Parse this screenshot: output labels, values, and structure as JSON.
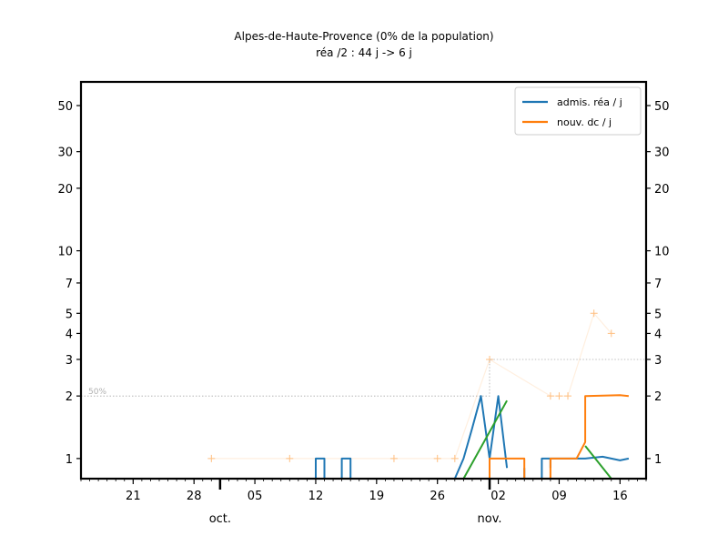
{
  "chart_data": {
    "type": "line",
    "title": "Alpes-de-Haute-Provence (0% de la population)",
    "subtitle": "réa /2 : 44 j -> 6 j",
    "xlabel": "",
    "ylabel": "",
    "yscale": "log",
    "ylim": [
      0.8,
      65
    ],
    "xlim": [
      "2020-09-15",
      "2020-11-19"
    ],
    "grid": false,
    "legend_position": "top-right",
    "y_ticks": [
      1,
      2,
      3,
      4,
      5,
      7,
      10,
      20,
      30,
      50
    ],
    "y_tick_labels": [
      "1",
      "2",
      "3",
      "4",
      "5",
      "7",
      "10",
      "20",
      "30",
      "50"
    ],
    "x_ticks": [
      "2020-09-21",
      "2020-09-28",
      "2020-10-05",
      "2020-10-12",
      "2020-10-19",
      "2020-10-26",
      "2020-11-02",
      "2020-11-09",
      "2020-11-16"
    ],
    "x_tick_labels": [
      "21",
      "28",
      "05",
      "12",
      "19",
      "26",
      "02",
      "09",
      "16"
    ],
    "month_labels": [
      {
        "date": "2020-10-01",
        "label": "oct."
      },
      {
        "date": "2020-11-01",
        "label": "nov."
      }
    ],
    "reference_label": "50%",
    "series": [
      {
        "name": "admis. réa / j",
        "color": "#1f77b4",
        "segments": [
          [
            [
              "2020-10-12",
              0.8
            ],
            [
              "2020-10-12",
              1.0
            ],
            [
              "2020-10-13",
              1.0
            ],
            [
              "2020-10-13",
              0.8
            ]
          ],
          [
            [
              "2020-10-15",
              0.8
            ],
            [
              "2020-10-15",
              1.0
            ],
            [
              "2020-10-16",
              1.0
            ],
            [
              "2020-10-16",
              0.8
            ]
          ],
          [
            [
              "2020-10-28",
              0.8
            ],
            [
              "2020-10-29",
              1.0
            ],
            [
              "2020-10-30",
              1.4
            ],
            [
              "2020-10-31",
              2.0
            ],
            [
              "2020-11-01",
              1.0
            ],
            [
              "2020-11-01",
              0.8
            ]
          ],
          [
            [
              "2020-11-01",
              1.0
            ],
            [
              "2020-11-02",
              2.0
            ],
            [
              "2020-11-03",
              0.9
            ]
          ],
          [
            [
              "2020-11-05",
              0.8
            ],
            [
              "2020-11-05",
              0.9
            ]
          ],
          [
            [
              "2020-11-07",
              0.8
            ],
            [
              "2020-11-07",
              1.0
            ],
            [
              "2020-11-08",
              1.0
            ],
            [
              "2020-11-08",
              0.9
            ]
          ],
          [
            [
              "2020-11-08",
              1.0
            ],
            [
              "2020-11-12",
              1.0
            ],
            [
              "2020-11-14",
              1.02
            ],
            [
              "2020-11-16",
              0.98
            ],
            [
              "2020-11-17",
              1.0
            ]
          ]
        ]
      },
      {
        "name": "nouv. dc / j",
        "color": "#ff7f0e",
        "segments": [
          [
            [
              "2020-11-01",
              0.8
            ],
            [
              "2020-11-01",
              1.0
            ],
            [
              "2020-11-05",
              1.0
            ],
            [
              "2020-11-05",
              0.8
            ]
          ],
          [
            [
              "2020-11-08",
              0.8
            ],
            [
              "2020-11-08",
              1.0
            ],
            [
              "2020-11-11",
              1.0
            ],
            [
              "2020-11-12",
              1.2
            ],
            [
              "2020-11-12",
              2.0
            ],
            [
              "2020-11-16",
              2.02
            ],
            [
              "2020-11-17",
              2.0
            ]
          ]
        ]
      }
    ],
    "trend_lines": [
      {
        "color": "#2ca02c",
        "points": [
          [
            "2020-10-29",
            0.8
          ],
          [
            "2020-11-03",
            1.9
          ]
        ]
      },
      {
        "color": "#2ca02c",
        "points": [
          [
            "2020-11-12",
            1.15
          ],
          [
            "2020-11-15",
            0.8
          ]
        ]
      }
    ],
    "reference_line": {
      "color": "#aaaaaa",
      "points": [
        [
          "2020-09-15",
          2.0
        ],
        [
          "2020-10-30",
          2.0
        ],
        [
          "2020-10-31",
          2.0
        ],
        [
          "2020-11-01",
          2.0
        ],
        [
          "2020-11-01",
          3.0
        ],
        [
          "2020-11-19",
          3.0
        ]
      ]
    },
    "daily_deaths_markers": {
      "color": "#ffbf80",
      "points": [
        [
          "2020-09-30",
          1
        ],
        [
          "2020-10-09",
          1
        ],
        [
          "2020-10-21",
          1
        ],
        [
          "2020-10-26",
          1
        ],
        [
          "2020-10-28",
          1
        ],
        [
          "2020-11-01",
          3
        ],
        [
          "2020-11-08",
          2
        ],
        [
          "2020-11-09",
          2
        ],
        [
          "2020-11-10",
          2
        ],
        [
          "2020-11-13",
          5
        ],
        [
          "2020-11-15",
          4
        ]
      ]
    }
  }
}
